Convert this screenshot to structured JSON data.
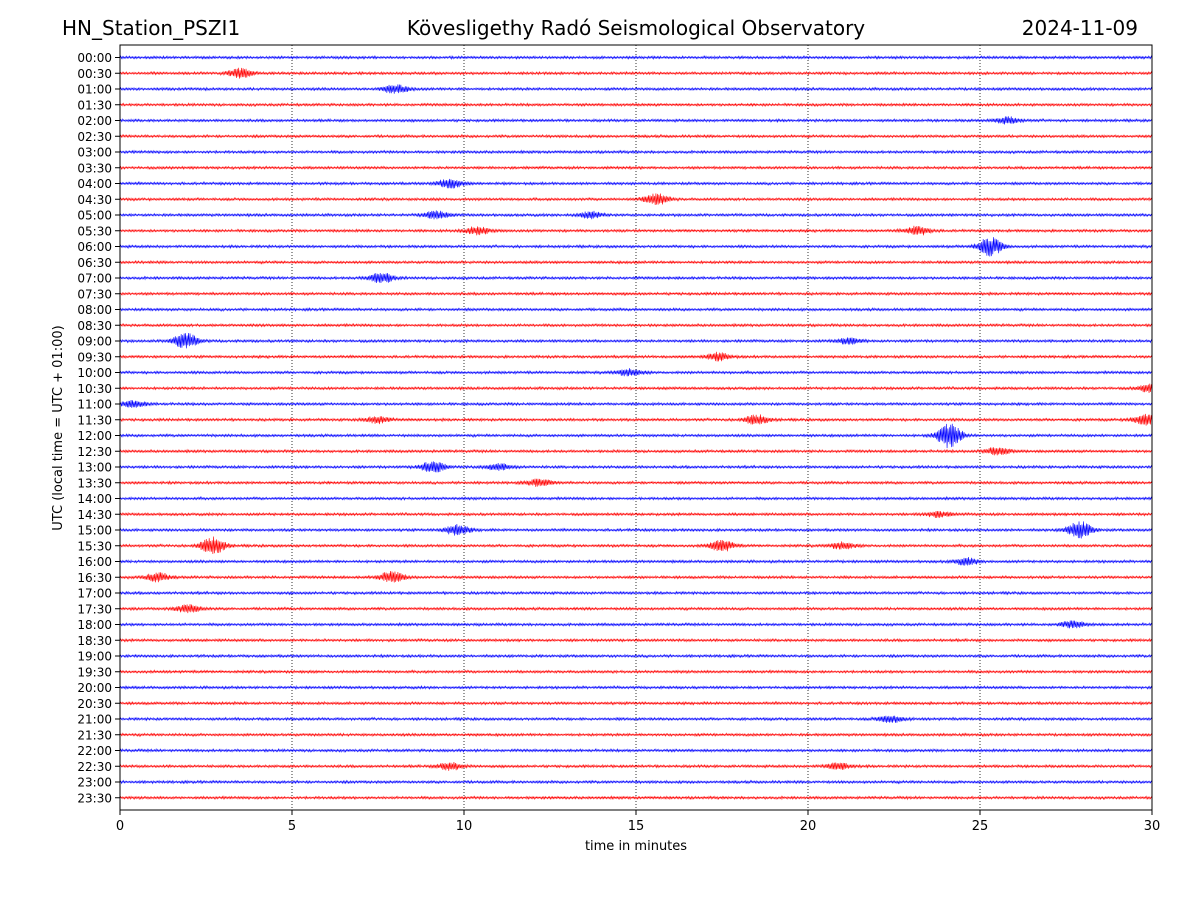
{
  "header": {
    "station": "HN_Station_PSZI1",
    "observatory": "Kövesligethy Radó Seismological Observatory",
    "date": "2024-11-09"
  },
  "chart_data": {
    "type": "line",
    "subtype": "helicorder",
    "xlabel": "time in minutes",
    "ylabel": "UTC (local time = UTC + 01:00)",
    "xlim": [
      0,
      30
    ],
    "x_ticks": [
      "0",
      "5",
      "10",
      "15",
      "20",
      "25",
      "30"
    ],
    "grid": "vertical dotted at every 5 minutes",
    "trace_colors": [
      "#0000ff",
      "#ff0000"
    ],
    "row_labels": [
      "00:00",
      "00:30",
      "01:00",
      "01:30",
      "02:00",
      "02:30",
      "03:00",
      "03:30",
      "04:00",
      "04:30",
      "05:00",
      "05:30",
      "06:00",
      "06:30",
      "07:00",
      "07:30",
      "08:00",
      "08:30",
      "09:00",
      "09:30",
      "10:00",
      "10:30",
      "11:00",
      "11:30",
      "12:00",
      "12:30",
      "13:00",
      "13:30",
      "14:00",
      "14:30",
      "15:00",
      "15:30",
      "16:00",
      "16:30",
      "17:00",
      "17:30",
      "18:00",
      "18:30",
      "19:00",
      "19:30",
      "20:00",
      "20:30",
      "21:00",
      "21:30",
      "22:00",
      "22:30",
      "23:00",
      "23:30"
    ],
    "events": [
      {
        "row": "00:30",
        "minute": 3.5,
        "amplitude": 0.5
      },
      {
        "row": "01:00",
        "minute": 8.0,
        "amplitude": 0.45
      },
      {
        "row": "02:00",
        "minute": 25.8,
        "amplitude": 0.35
      },
      {
        "row": "04:00",
        "minute": 9.6,
        "amplitude": 0.5
      },
      {
        "row": "04:30",
        "minute": 15.6,
        "amplitude": 0.6
      },
      {
        "row": "05:00",
        "minute": 9.2,
        "amplitude": 0.4
      },
      {
        "row": "05:00",
        "minute": 13.7,
        "amplitude": 0.35
      },
      {
        "row": "05:30",
        "minute": 10.4,
        "amplitude": 0.4
      },
      {
        "row": "05:30",
        "minute": 23.2,
        "amplitude": 0.45
      },
      {
        "row": "06:00",
        "minute": 25.3,
        "amplitude": 1.0
      },
      {
        "row": "07:00",
        "minute": 7.6,
        "amplitude": 0.55
      },
      {
        "row": "09:00",
        "minute": 1.9,
        "amplitude": 0.8
      },
      {
        "row": "09:00",
        "minute": 21.2,
        "amplitude": 0.3
      },
      {
        "row": "09:30",
        "minute": 17.4,
        "amplitude": 0.4
      },
      {
        "row": "10:00",
        "minute": 14.8,
        "amplitude": 0.35
      },
      {
        "row": "10:30",
        "minute": 30.0,
        "amplitude": 0.5
      },
      {
        "row": "11:00",
        "minute": 0.4,
        "amplitude": 0.35
      },
      {
        "row": "11:30",
        "minute": 7.5,
        "amplitude": 0.35
      },
      {
        "row": "11:30",
        "minute": 18.5,
        "amplitude": 0.5
      },
      {
        "row": "11:30",
        "minute": 29.8,
        "amplitude": 0.55
      },
      {
        "row": "12:00",
        "minute": 24.1,
        "amplitude": 1.3
      },
      {
        "row": "12:30",
        "minute": 25.5,
        "amplitude": 0.4
      },
      {
        "row": "13:00",
        "minute": 9.1,
        "amplitude": 0.6
      },
      {
        "row": "13:00",
        "minute": 11.0,
        "amplitude": 0.35
      },
      {
        "row": "13:30",
        "minute": 12.2,
        "amplitude": 0.35
      },
      {
        "row": "14:30",
        "minute": 23.8,
        "amplitude": 0.3
      },
      {
        "row": "15:00",
        "minute": 9.8,
        "amplitude": 0.55
      },
      {
        "row": "15:00",
        "minute": 27.9,
        "amplitude": 0.9
      },
      {
        "row": "15:30",
        "minute": 2.7,
        "amplitude": 0.9
      },
      {
        "row": "15:30",
        "minute": 17.5,
        "amplitude": 0.6
      },
      {
        "row": "15:30",
        "minute": 21.0,
        "amplitude": 0.35
      },
      {
        "row": "16:00",
        "minute": 24.6,
        "amplitude": 0.35
      },
      {
        "row": "16:30",
        "minute": 1.1,
        "amplitude": 0.45
      },
      {
        "row": "16:30",
        "minute": 7.9,
        "amplitude": 0.6
      },
      {
        "row": "17:30",
        "minute": 2.0,
        "amplitude": 0.45
      },
      {
        "row": "18:00",
        "minute": 27.7,
        "amplitude": 0.35
      },
      {
        "row": "21:00",
        "minute": 22.4,
        "amplitude": 0.4
      },
      {
        "row": "22:30",
        "minute": 9.6,
        "amplitude": 0.4
      },
      {
        "row": "22:30",
        "minute": 20.9,
        "amplitude": 0.35
      }
    ]
  }
}
